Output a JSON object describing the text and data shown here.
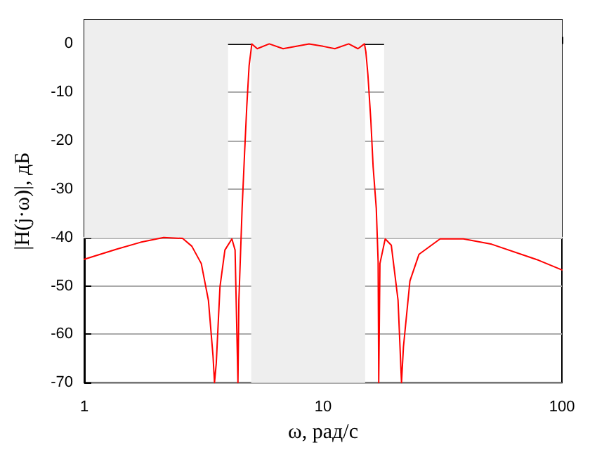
{
  "chart_data": {
    "type": "line",
    "xlabel": "ω, рад/с",
    "ylabel": "|H(j·ω)|, дБ",
    "xlim": [
      1,
      100
    ],
    "xticks": [
      1,
      10,
      100
    ],
    "ylim": [
      -70,
      5
    ],
    "yticks": [
      0,
      -10,
      -20,
      -30,
      -40,
      -50,
      -60,
      -70
    ],
    "log": "x",
    "grid": "y",
    "marker": "none",
    "line_style": "solid",
    "bands": [
      {
        "axis": "x",
        "from": 5,
        "to": 15,
        "color": "#eeeeee"
      },
      {
        "axis": "y",
        "from": 0,
        "to": 5,
        "color": "#eeeeee"
      }
    ],
    "series": [
      {
        "color": "#eeeeee",
        "x": [
          1,
          4
        ],
        "values": [
          -40,
          -40
        ],
        "lower": [
          -40,
          -40
        ],
        "upper": [
          5,
          5
        ]
      },
      {
        "color": "#eeeeee",
        "x": [
          18,
          100
        ],
        "values": [
          -40,
          -40
        ],
        "lower": [
          -40,
          -40
        ],
        "upper": [
          5,
          5
        ]
      },
      {
        "color": "#ff0000",
        "x": [
          1,
          1.37,
          1.72,
          2.15,
          2.58,
          2.82,
          3.09,
          3.31,
          3.46,
          3.51,
          3.57,
          3.7,
          3.88,
          4.15,
          4.28,
          4.4,
          4.44,
          4.58,
          4.69,
          4.79,
          4.9,
          5.03,
          5.3,
          5.95,
          6.8,
          8.73,
          10,
          11.2,
          12.8,
          14,
          14.9,
          15.1,
          15.4,
          15.85,
          16.2,
          16.7,
          17,
          17.1,
          17.3,
          18.2,
          19.3,
          20.6,
          21.3,
          21.7,
          23.1,
          25.2,
          30.9,
          38.7,
          50.8,
          79.8,
          100
        ],
        "values": [
          -44.5,
          -42.4,
          -41,
          -40,
          -40.2,
          -41.8,
          -45.4,
          -53,
          -64.5,
          -70,
          -66,
          -50.2,
          -42.6,
          -40.3,
          -42.6,
          -70,
          -53,
          -34,
          -22.6,
          -13,
          -4.5,
          0,
          -1,
          0,
          -1,
          0,
          -0.5,
          -1,
          0,
          -1,
          0,
          -1.6,
          -6.3,
          -15.9,
          -25.4,
          -34,
          -45,
          -70,
          -45.4,
          -40.3,
          -41.6,
          -53,
          -70,
          -62.6,
          -49,
          -43.5,
          -40.3,
          -40.3,
          -41.4,
          -44.7,
          -46.7
        ]
      }
    ]
  }
}
